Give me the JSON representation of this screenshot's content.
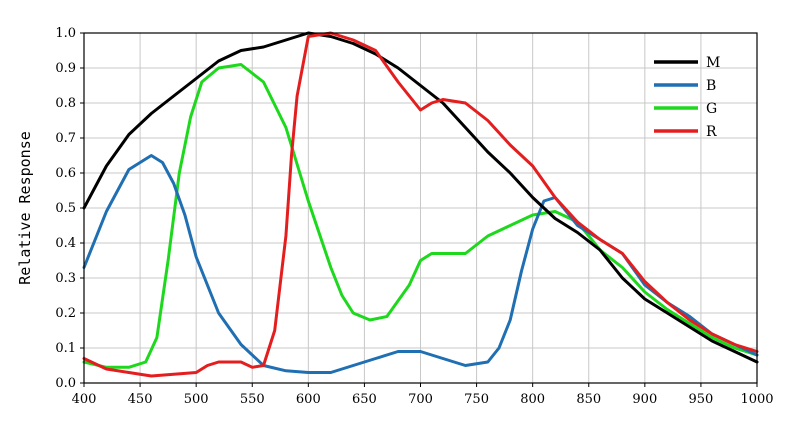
{
  "chart_data": {
    "type": "line",
    "title": "",
    "xlabel": "",
    "ylabel": "Relative Response",
    "xlim": [
      400,
      1000
    ],
    "ylim": [
      0.0,
      1.0
    ],
    "xticks": [
      "400",
      "450",
      "500",
      "550",
      "600",
      "650",
      "700",
      "750",
      "800",
      "850",
      "900",
      "950",
      "1000"
    ],
    "yticks": [
      "0.0",
      "0.1",
      "0.2",
      "0.3",
      "0.4",
      "0.5",
      "0.6",
      "0.7",
      "0.8",
      "0.9",
      "1.0"
    ],
    "grid": true,
    "legend_position": "top-right",
    "series": [
      {
        "name": "M",
        "color": "#000000",
        "x": [
          400,
          420,
          440,
          460,
          480,
          500,
          520,
          540,
          560,
          580,
          600,
          620,
          640,
          660,
          680,
          700,
          720,
          740,
          760,
          780,
          800,
          820,
          840,
          860,
          880,
          900,
          920,
          940,
          960,
          980,
          1000
        ],
        "y": [
          0.5,
          0.62,
          0.71,
          0.77,
          0.82,
          0.87,
          0.92,
          0.95,
          0.96,
          0.98,
          1.0,
          0.99,
          0.97,
          0.94,
          0.9,
          0.85,
          0.8,
          0.73,
          0.66,
          0.6,
          0.53,
          0.47,
          0.43,
          0.38,
          0.3,
          0.24,
          0.2,
          0.16,
          0.12,
          0.09,
          0.06
        ]
      },
      {
        "name": "B",
        "color": "#1f6fb2",
        "x": [
          400,
          420,
          440,
          460,
          470,
          480,
          490,
          500,
          520,
          540,
          560,
          580,
          600,
          620,
          640,
          660,
          680,
          700,
          720,
          740,
          760,
          770,
          780,
          790,
          800,
          810,
          820,
          830,
          840,
          860,
          880,
          900,
          920,
          940,
          960,
          980,
          1000
        ],
        "y": [
          0.33,
          0.49,
          0.61,
          0.65,
          0.63,
          0.57,
          0.48,
          0.36,
          0.2,
          0.11,
          0.05,
          0.035,
          0.03,
          0.03,
          0.05,
          0.07,
          0.09,
          0.09,
          0.07,
          0.05,
          0.06,
          0.1,
          0.18,
          0.32,
          0.44,
          0.52,
          0.53,
          0.49,
          0.45,
          0.41,
          0.37,
          0.28,
          0.23,
          0.19,
          0.14,
          0.11,
          0.08
        ]
      },
      {
        "name": "G",
        "color": "#1ed81e",
        "x": [
          400,
          420,
          440,
          455,
          465,
          475,
          485,
          495,
          505,
          520,
          540,
          560,
          580,
          600,
          620,
          630,
          640,
          655,
          670,
          690,
          700,
          710,
          720,
          740,
          760,
          780,
          800,
          820,
          840,
          860,
          880,
          900,
          920,
          940,
          960,
          980,
          1000
        ],
        "y": [
          0.06,
          0.045,
          0.045,
          0.06,
          0.13,
          0.35,
          0.6,
          0.76,
          0.86,
          0.9,
          0.91,
          0.86,
          0.73,
          0.52,
          0.33,
          0.25,
          0.2,
          0.18,
          0.19,
          0.28,
          0.35,
          0.37,
          0.37,
          0.37,
          0.42,
          0.45,
          0.48,
          0.49,
          0.46,
          0.38,
          0.33,
          0.26,
          0.21,
          0.17,
          0.13,
          0.1,
          0.08
        ]
      },
      {
        "name": "R",
        "color": "#e41e1e",
        "x": [
          400,
          420,
          440,
          460,
          480,
          500,
          510,
          520,
          540,
          550,
          560,
          570,
          580,
          585,
          590,
          600,
          620,
          640,
          660,
          680,
          700,
          710,
          720,
          740,
          760,
          780,
          800,
          820,
          840,
          860,
          880,
          900,
          920,
          940,
          960,
          980,
          1000
        ],
        "y": [
          0.07,
          0.04,
          0.03,
          0.02,
          0.025,
          0.03,
          0.05,
          0.06,
          0.06,
          0.045,
          0.05,
          0.15,
          0.42,
          0.65,
          0.82,
          0.99,
          1.0,
          0.98,
          0.95,
          0.86,
          0.78,
          0.8,
          0.81,
          0.8,
          0.75,
          0.68,
          0.62,
          0.53,
          0.46,
          0.41,
          0.37,
          0.29,
          0.23,
          0.18,
          0.14,
          0.11,
          0.09
        ]
      }
    ]
  }
}
